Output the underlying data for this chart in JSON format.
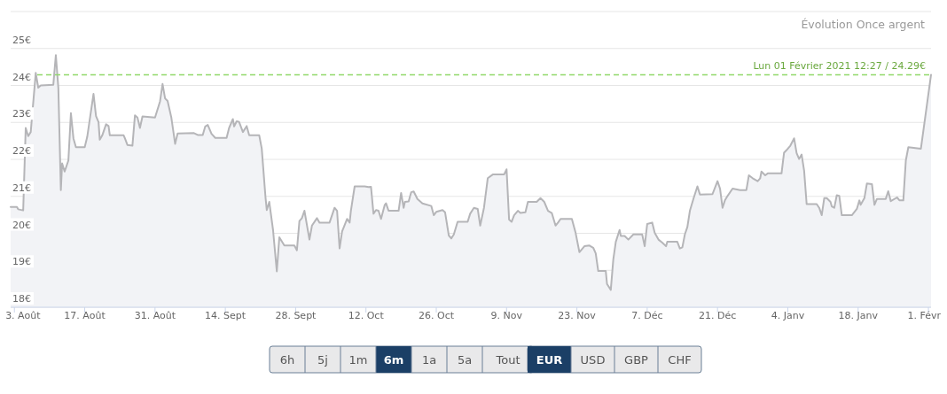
{
  "chart_data": {
    "type": "area",
    "title": "Évolution Once argent",
    "x": [
      "2020-08-02T06:00",
      "2020-08-03T12:00",
      "2020-08-03T18:00",
      "2020-08-04T18:00",
      "2020-08-05T06:00",
      "2020-08-05T18:00",
      "2020-08-06T06:00",
      "2020-08-07T06:00",
      "2020-08-07T18:00",
      "2020-08-08T06:00",
      "2020-08-10T18:00",
      "2020-08-11T06:00",
      "2020-08-11T18:00",
      "2020-08-12T06:00",
      "2020-08-12T12:00",
      "2020-08-13T00:00",
      "2020-08-13T18:00",
      "2020-08-14T06:00",
      "2020-08-14T18:00",
      "2020-08-15T06:00",
      "2020-08-17T00:00",
      "2020-08-17T12:00",
      "2020-08-18T18:00",
      "2020-08-19T06:00",
      "2020-08-19T18:00",
      "2020-08-20T00:00",
      "2020-08-20T12:00",
      "2020-08-21T06:00",
      "2020-08-21T18:00",
      "2020-08-22T00:00",
      "2020-08-24T18:00",
      "2020-08-25T00:00",
      "2020-08-25T12:00",
      "2020-08-26T12:00",
      "2020-08-27T00:00",
      "2020-08-27T12:00",
      "2020-08-28T00:00",
      "2020-08-28T12:00",
      "2020-08-31T00:00",
      "2020-09-01T00:00",
      "2020-09-01T12:00",
      "2020-09-02T00:00",
      "2020-09-02T12:00",
      "2020-09-03T06:00",
      "2020-09-04T00:00",
      "2020-09-04T12:00",
      "2020-09-07T18:00",
      "2020-09-08T12:00",
      "2020-09-09T12:00",
      "2020-09-10T00:00",
      "2020-09-10T12:00",
      "2020-09-11T06:00",
      "2020-09-12T00:00",
      "2020-09-14T06:00",
      "2020-09-14T18:00",
      "2020-09-15T12:00",
      "2020-09-15T18:00",
      "2020-09-16T06:00",
      "2020-09-16T18:00",
      "2020-09-17T12:00",
      "2020-09-18T06:00",
      "2020-09-18T18:00",
      "2020-09-20T18:00",
      "2020-09-21T06:00",
      "2020-09-22T00:00",
      "2020-09-22T06:00",
      "2020-09-22T18:00",
      "2020-09-23T12:00",
      "2020-09-24T06:00",
      "2020-09-24T18:00",
      "2020-09-25T18:00",
      "2020-09-27T18:00",
      "2020-09-28T06:00",
      "2020-09-28T18:00",
      "2020-09-29T06:00",
      "2020-09-29T18:00",
      "2020-09-30T18:00",
      "2020-10-01T06:00",
      "2020-10-02T06:00",
      "2020-10-02T18:00",
      "2020-10-04T18:00",
      "2020-10-05T18:00",
      "2020-10-06T06:00",
      "2020-10-06T18:00",
      "2020-10-07T06:00",
      "2020-10-08T06:00",
      "2020-10-08T18:00",
      "2020-10-09T00:00",
      "2020-10-09T18:00",
      "2020-10-11T18:00",
      "2020-10-12T12:00",
      "2020-10-13T00:00",
      "2020-10-13T12:00",
      "2020-10-14T00:00",
      "2020-10-14T12:00",
      "2020-10-15T00:00",
      "2020-10-15T18:00",
      "2020-10-16T00:00",
      "2020-10-16T12:00",
      "2020-10-18T12:00",
      "2020-10-19T00:00",
      "2020-10-19T12:00",
      "2020-10-19T18:00",
      "2020-10-20T12:00",
      "2020-10-21T00:00",
      "2020-10-21T12:00",
      "2020-10-22T06:00",
      "2020-10-23T06:00",
      "2020-10-25T00:00",
      "2020-10-25T12:00",
      "2020-10-26T00:00",
      "2020-10-27T06:00",
      "2020-10-27T18:00",
      "2020-10-28T12:00",
      "2020-10-29T00:00",
      "2020-10-29T12:00",
      "2020-10-30T06:00",
      "2020-11-01T06:00",
      "2020-11-01T18:00",
      "2020-11-02T12:00",
      "2020-11-03T06:00",
      "2020-11-03T18:00",
      "2020-11-04T12:00",
      "2020-11-05T06:00",
      "2020-11-06T06:00",
      "2020-11-08T12:00",
      "2020-11-09T00:00",
      "2020-11-09T12:00",
      "2020-11-10T00:00",
      "2020-11-10T12:00",
      "2020-11-11T06:00",
      "2020-11-11T18:00",
      "2020-11-12T18:00",
      "2020-11-13T06:00",
      "2020-11-15T00:00",
      "2020-11-15T18:00",
      "2020-11-16T12:00",
      "2020-11-17T06:00",
      "2020-11-18T00:00",
      "2020-11-18T18:00",
      "2020-11-19T06:00",
      "2020-11-19T18:00",
      "2020-11-22T00:00",
      "2020-11-22T18:00",
      "2020-11-23T12:00",
      "2020-11-24T12:00",
      "2020-11-25T12:00",
      "2020-11-26T06:00",
      "2020-11-26T18:00",
      "2020-11-27T06:00",
      "2020-11-28T18:00",
      "2020-11-29T00:00",
      "2020-11-29T18:00",
      "2020-11-30T06:00",
      "2020-11-30T18:00",
      "2020-12-01T12:00",
      "2020-12-01T18:00",
      "2020-12-02T12:00",
      "2020-12-03T06:00",
      "2020-12-04T06:00",
      "2020-12-06T00:00",
      "2020-12-06T12:00",
      "2020-12-07T00:00",
      "2020-12-08T00:00",
      "2020-12-08T12:00",
      "2020-12-09T06:00",
      "2020-12-10T00:00",
      "2020-12-10T18:00",
      "2020-12-11T00:00",
      "2020-12-13T00:00",
      "2020-12-13T12:00",
      "2020-12-14T00:00",
      "2020-12-14T12:00",
      "2020-12-15T00:00",
      "2020-12-15T12:00",
      "2020-12-16T06:00",
      "2020-12-17T00:00",
      "2020-12-17T12:00",
      "2020-12-20T00:00",
      "2020-12-21T00:00",
      "2020-12-21T12:00",
      "2020-12-22T00:00",
      "2020-12-22T12:00",
      "2020-12-23T00:00",
      "2020-12-24T00:00",
      "2020-12-25T12:00",
      "2020-12-26T18:00",
      "2020-12-27T06:00",
      "2020-12-28T00:00",
      "2020-12-29T00:00",
      "2020-12-29T12:00",
      "2020-12-29T18:00",
      "2020-12-30T12:00",
      "2020-12-31T00:00",
      "2021-01-02T18:00",
      "2021-01-03T06:00",
      "2021-01-03T18:00",
      "2021-01-04T12:00",
      "2021-01-05T06:00",
      "2021-01-05T18:00",
      "2021-01-06T06:00",
      "2021-01-06T18:00",
      "2021-01-07T06:00",
      "2021-01-07T18:00",
      "2021-01-09T18:00",
      "2021-01-10T06:00",
      "2021-01-10T18:00",
      "2021-01-11T06:00",
      "2021-01-11T18:00",
      "2021-01-12T12:00",
      "2021-01-12T18:00",
      "2021-01-13T06:00",
      "2021-01-13T18:00",
      "2021-01-14T06:00",
      "2021-01-14T18:00",
      "2021-01-16T18:00",
      "2021-01-17T18:00",
      "2021-01-18T06:00",
      "2021-01-18T12:00",
      "2021-01-19T06:00",
      "2021-01-19T18:00",
      "2021-01-20T18:00",
      "2021-01-21T06:00",
      "2021-01-21T18:00",
      "2021-01-23T12:00",
      "2021-01-24T00:00",
      "2021-01-24T12:00",
      "2021-01-25T18:00",
      "2021-01-26T06:00",
      "2021-01-27T00:00",
      "2021-01-27T12:00",
      "2021-01-28T00:00",
      "2021-01-30T12:00",
      "2021-02-01T12:27"
    ],
    "series": [
      {
        "color": "#b5b5b8",
        "values": [
          20.71,
          20.71,
          20.65,
          20.62,
          22.85,
          22.63,
          22.74,
          24.34,
          23.94,
          24.0,
          24.02,
          24.82,
          23.93,
          21.17,
          21.89,
          21.67,
          21.97,
          23.25,
          22.57,
          22.33,
          22.33,
          22.61,
          23.77,
          23.17,
          23.01,
          22.53,
          22.65,
          22.95,
          22.9,
          22.65,
          22.65,
          22.57,
          22.39,
          22.37,
          23.19,
          23.13,
          22.85,
          23.16,
          23.13,
          23.57,
          24.04,
          23.65,
          23.58,
          23.13,
          22.42,
          22.7,
          22.71,
          22.66,
          22.66,
          22.89,
          22.93,
          22.69,
          22.58,
          22.58,
          22.85,
          23.09,
          22.89,
          23.03,
          23.01,
          22.74,
          22.9,
          22.65,
          22.65,
          22.29,
          20.97,
          20.63,
          20.85,
          20.09,
          18.97,
          19.89,
          19.67,
          19.67,
          19.54,
          20.33,
          20.41,
          20.61,
          19.83,
          20.21,
          20.41,
          20.29,
          20.29,
          20.69,
          20.61,
          19.59,
          20.05,
          20.39,
          20.29,
          20.61,
          21.27,
          21.27,
          21.25,
          21.26,
          20.53,
          20.63,
          20.61,
          20.39,
          20.77,
          20.81,
          20.61,
          20.61,
          21.09,
          20.69,
          20.85,
          20.86,
          21.11,
          21.13,
          20.93,
          20.81,
          20.74,
          20.49,
          20.58,
          20.63,
          20.57,
          19.94,
          19.86,
          19.97,
          20.31,
          20.31,
          20.53,
          20.69,
          20.66,
          20.21,
          20.69,
          21.49,
          21.59,
          21.59,
          21.73,
          20.37,
          20.31,
          20.49,
          20.61,
          20.55,
          20.57,
          20.85,
          20.85,
          20.95,
          20.85,
          20.61,
          20.55,
          20.21,
          20.29,
          20.39,
          20.39,
          20.01,
          19.49,
          19.65,
          19.67,
          19.61,
          19.46,
          18.98,
          18.98,
          18.63,
          18.47,
          19.29,
          19.77,
          20.09,
          19.93,
          19.93,
          19.83,
          19.97,
          19.97,
          19.65,
          20.25,
          20.29,
          20.01,
          19.83,
          19.75,
          19.65,
          19.77,
          19.77,
          19.59,
          19.62,
          19.97,
          20.17,
          20.61,
          20.95,
          21.27,
          21.05,
          21.06,
          21.41,
          21.21,
          20.69,
          20.9,
          21.01,
          21.21,
          21.17,
          21.17,
          21.57,
          21.49,
          21.41,
          21.49,
          21.67,
          21.57,
          21.62,
          21.62,
          22.18,
          22.25,
          22.37,
          22.57,
          22.17,
          22.01,
          22.13,
          21.69,
          20.79,
          20.79,
          20.69,
          20.49,
          20.95,
          20.95,
          20.85,
          20.73,
          20.69,
          21.03,
          21.01,
          20.49,
          20.49,
          20.66,
          20.89,
          20.77,
          20.95,
          21.35,
          21.33,
          20.77,
          20.93,
          20.93,
          21.14,
          20.87,
          20.97,
          20.89,
          20.89,
          21.97,
          22.33,
          22.29,
          24.29
        ]
      }
    ],
    "xlim": [
      "2020-08-02T06:00",
      "2021-02-01T12:27"
    ],
    "xticks": [
      {
        "value": "2020-08-03",
        "label": "3. Août"
      },
      {
        "value": "2020-08-17",
        "label": "17. Août"
      },
      {
        "value": "2020-08-31",
        "label": "31. Août"
      },
      {
        "value": "2020-09-14",
        "label": "14. Sept"
      },
      {
        "value": "2020-09-28",
        "label": "28. Sept"
      },
      {
        "value": "2020-10-12",
        "label": "12. Oct"
      },
      {
        "value": "2020-10-26",
        "label": "26. Oct"
      },
      {
        "value": "2020-11-09",
        "label": "9. Nov"
      },
      {
        "value": "2020-11-23",
        "label": "23. Nov"
      },
      {
        "value": "2020-12-07",
        "label": "7. Déc"
      },
      {
        "value": "2020-12-21",
        "label": "21. Déc"
      },
      {
        "value": "2021-01-04",
        "label": "4. Janv"
      },
      {
        "value": "2021-01-18",
        "label": "18. Janv"
      },
      {
        "value": "2021-02-01",
        "label": "1. Févr"
      }
    ],
    "ylim": [
      18,
      26
    ],
    "yticks": [
      {
        "value": 18,
        "label": "18€"
      },
      {
        "value": 19,
        "label": "19€"
      },
      {
        "value": 20,
        "label": "20€"
      },
      {
        "value": 21,
        "label": "21€"
      },
      {
        "value": 22,
        "label": "22€"
      },
      {
        "value": 23,
        "label": "23€"
      },
      {
        "value": 24,
        "label": "24€"
      },
      {
        "value": 25,
        "label": "25€"
      },
      {
        "value": 26,
        "label": null
      }
    ],
    "grid": "y",
    "ref_lines": [
      {
        "axis": "y",
        "value": 24.29,
        "label": "Lun 01 Février 2021 12:27 / 24.29€",
        "color": "#90d86a",
        "line_style": "dashed"
      }
    ],
    "annotations": [
      "6h",
      "5j",
      "1m",
      "6m",
      "1a",
      "5a",
      "Tout",
      "EUR",
      "USD",
      "GBP",
      "CHF"
    ]
  }
}
